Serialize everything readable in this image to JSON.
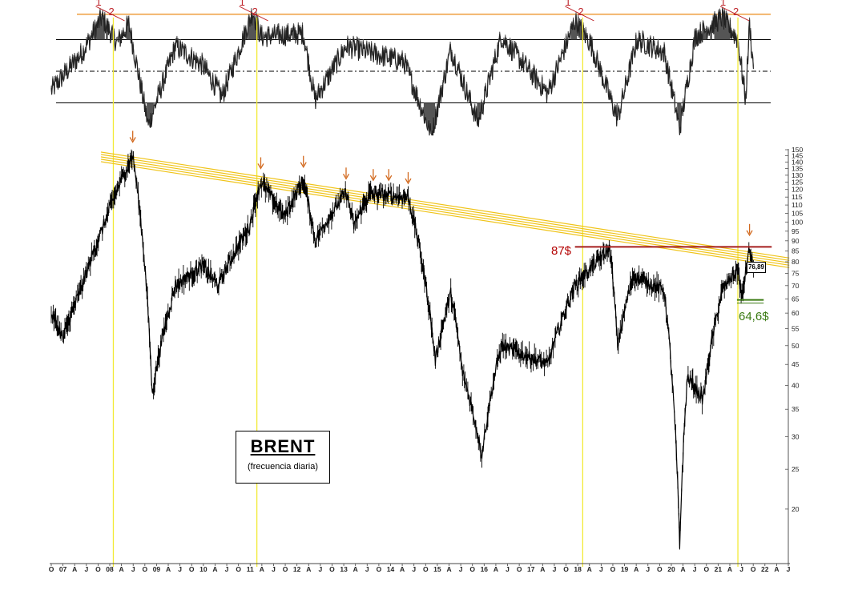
{
  "title": "BRENT",
  "subtitle": "(frecuencia diaria)",
  "annotations": {
    "resistance_label": "87$",
    "support_label": "64,6$",
    "last_price": "76,89",
    "peak_marker_1": "1",
    "peak_marker_2": "2"
  },
  "colors": {
    "price": "#000000",
    "oscillator": "#222222",
    "trendline": "#f0c419",
    "resistance": "#a51d1d",
    "support": "#3a7a12",
    "arrow": "#d2691e",
    "vertical_marker": "#f2ea36",
    "oscillator_band": "#f2b56b"
  },
  "chart_data": [
    {
      "type": "line",
      "name": "price",
      "scale": "log",
      "ylim": [
        15,
        150
      ],
      "y_ticks": [
        "150",
        "145",
        "140",
        "135",
        "130",
        "125",
        "120",
        "115",
        "110",
        "105",
        "100",
        "95",
        "90",
        "85",
        "80",
        "75",
        "70",
        "65",
        "60",
        "55",
        "50",
        "45",
        "40",
        "35",
        "30",
        "25",
        "20"
      ],
      "x_ticks": [
        "O",
        "07",
        "A",
        "J",
        "O",
        "08",
        "A",
        "J",
        "O",
        "09",
        "A",
        "J",
        "O",
        "10",
        "A",
        "J",
        "O",
        "11",
        "A",
        "J",
        "O",
        "12",
        "A",
        "J",
        "O",
        "13",
        "A",
        "J",
        "O",
        "14",
        "A",
        "J",
        "O",
        "15",
        "A",
        "J",
        "O",
        "16",
        "A",
        "J",
        "O",
        "17",
        "A",
        "J",
        "O",
        "18",
        "A",
        "J",
        "O",
        "19",
        "A",
        "J",
        "O",
        "20",
        "A",
        "J",
        "O",
        "21",
        "A",
        "J",
        "O",
        "22",
        "A",
        "J"
      ],
      "x_range": [
        "2006-10",
        "2022-08"
      ],
      "key_points": [
        {
          "date": "2006-10",
          "value": 60
        },
        {
          "date": "2007-01",
          "value": 52
        },
        {
          "date": "2007-06",
          "value": 70
        },
        {
          "date": "2007-11",
          "value": 95
        },
        {
          "date": "2008-07",
          "value": 145
        },
        {
          "date": "2008-12",
          "value": 38
        },
        {
          "date": "2009-06",
          "value": 70
        },
        {
          "date": "2010-01",
          "value": 78
        },
        {
          "date": "2010-05",
          "value": 70
        },
        {
          "date": "2011-01",
          "value": 97
        },
        {
          "date": "2011-04",
          "value": 125
        },
        {
          "date": "2011-10",
          "value": 103
        },
        {
          "date": "2012-03",
          "value": 126
        },
        {
          "date": "2012-06",
          "value": 90
        },
        {
          "date": "2013-02",
          "value": 118
        },
        {
          "date": "2013-04",
          "value": 98
        },
        {
          "date": "2013-08",
          "value": 117
        },
        {
          "date": "2014-06",
          "value": 115
        },
        {
          "date": "2015-01",
          "value": 46
        },
        {
          "date": "2015-05",
          "value": 67
        },
        {
          "date": "2015-08",
          "value": 43
        },
        {
          "date": "2016-01",
          "value": 27
        },
        {
          "date": "2016-06",
          "value": 50
        },
        {
          "date": "2017-06",
          "value": 45
        },
        {
          "date": "2018-01",
          "value": 70
        },
        {
          "date": "2018-10",
          "value": 86
        },
        {
          "date": "2018-12",
          "value": 50
        },
        {
          "date": "2019-04",
          "value": 74
        },
        {
          "date": "2019-12",
          "value": 68
        },
        {
          "date": "2020-04",
          "value": 16
        },
        {
          "date": "2020-06",
          "value": 42
        },
        {
          "date": "2020-10",
          "value": 37
        },
        {
          "date": "2021-03",
          "value": 68
        },
        {
          "date": "2021-07",
          "value": 77
        },
        {
          "date": "2021-08",
          "value": 64.6
        },
        {
          "date": "2021-10",
          "value": 86
        },
        {
          "date": "2021-11",
          "value": 76.89
        }
      ],
      "trendline": {
        "from": {
          "date": "2008-05",
          "value": 145
        },
        "to": {
          "date": "2021-12",
          "value": 84
        }
      },
      "resistance": {
        "value": 87,
        "from": "2018-01",
        "to": "2021-12"
      },
      "support": {
        "value": 64.6,
        "from": "2021-08",
        "to": "2021-12"
      },
      "arrow_dates": [
        "2008-07",
        "2011-04",
        "2012-03",
        "2013-02",
        "2013-09",
        "2014-01",
        "2014-06",
        "2021-10"
      ]
    },
    {
      "type": "line",
      "name": "oscillator",
      "ylim": [
        -100,
        100
      ],
      "levels": [
        90,
        50,
        0,
        -50
      ],
      "peak_dates": [
        "2008-02",
        "2011-03",
        "2018-03",
        "2021-07"
      ],
      "key_points": [
        {
          "date": "2006-10",
          "value": -30
        },
        {
          "date": "2007-06",
          "value": 30
        },
        {
          "date": "2007-11",
          "value": 85
        },
        {
          "date": "2008-03",
          "value": 45
        },
        {
          "date": "2008-06",
          "value": 75
        },
        {
          "date": "2008-11",
          "value": -85
        },
        {
          "date": "2009-06",
          "value": 40
        },
        {
          "date": "2010-01",
          "value": 10
        },
        {
          "date": "2010-06",
          "value": -40
        },
        {
          "date": "2011-02",
          "value": 95
        },
        {
          "date": "2011-04",
          "value": 55
        },
        {
          "date": "2012-03",
          "value": 60
        },
        {
          "date": "2012-06",
          "value": -45
        },
        {
          "date": "2013-02",
          "value": 40
        },
        {
          "date": "2013-08",
          "value": 30
        },
        {
          "date": "2014-05",
          "value": 15
        },
        {
          "date": "2014-12",
          "value": -100
        },
        {
          "date": "2015-05",
          "value": 35
        },
        {
          "date": "2015-12",
          "value": -80
        },
        {
          "date": "2016-06",
          "value": 55
        },
        {
          "date": "2017-06",
          "value": -35
        },
        {
          "date": "2018-01",
          "value": 80
        },
        {
          "date": "2018-05",
          "value": 45
        },
        {
          "date": "2018-12",
          "value": -75
        },
        {
          "date": "2019-05",
          "value": 50
        },
        {
          "date": "2019-12",
          "value": 30
        },
        {
          "date": "2020-04",
          "value": -90
        },
        {
          "date": "2020-08",
          "value": 55
        },
        {
          "date": "2021-03",
          "value": 85
        },
        {
          "date": "2021-07",
          "value": 50
        },
        {
          "date": "2021-09",
          "value": -45
        },
        {
          "date": "2021-10",
          "value": 75
        },
        {
          "date": "2021-11",
          "value": 5
        }
      ]
    }
  ]
}
